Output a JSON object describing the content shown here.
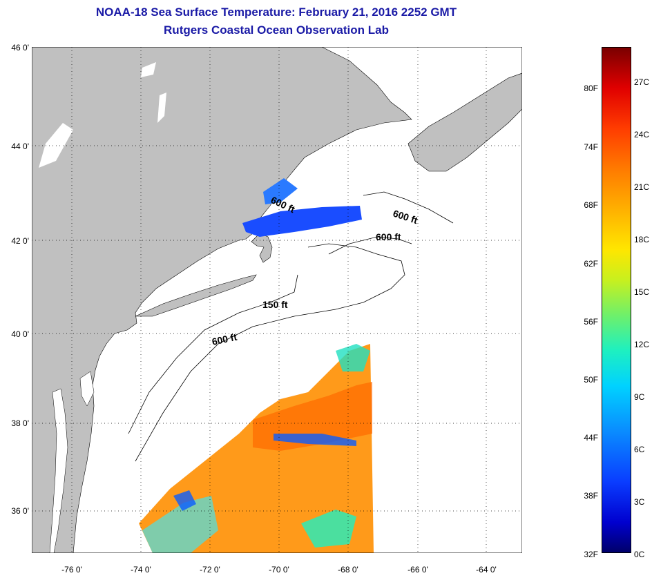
{
  "title": "NOAA-18 Sea Surface Temperature:  February 21, 2016 2252 GMT",
  "subtitle": "Rutgers Coastal Ocean Observation Lab",
  "map": {
    "lat_labels": [
      "46 0'",
      "44 0'",
      "42 0'",
      "40 0'",
      "38 0'",
      "36 0'"
    ],
    "lon_labels": [
      "-76 0'",
      "-74 0'",
      "-72 0'",
      "-70 0'",
      "-68 0'",
      "-66 0'",
      "-64 0'"
    ],
    "lat_range": [
      35,
      46
    ],
    "lon_range": [
      -77,
      -63
    ],
    "contour_labels": [
      "600 ft",
      "600 ft",
      "600 ft",
      "150 ft",
      "600 ft"
    ],
    "land_color": "#c0c0c0",
    "ocean_color": "#ffffff",
    "grid": "dotted"
  },
  "colorbar": {
    "fahrenheit_labels": [
      "80F",
      "74F",
      "68F",
      "62F",
      "56F",
      "50F",
      "44F",
      "38F",
      "32F"
    ],
    "celsius_labels": [
      "27C",
      "24C",
      "21C",
      "18C",
      "15C",
      "12C",
      "9C",
      "6C",
      "3C",
      "0C"
    ],
    "range_c": [
      0,
      29
    ],
    "colors": [
      "#00006a",
      "#0000cf",
      "#0a3dff",
      "#0a8cff",
      "#00d2ff",
      "#6ff06a",
      "#ffe600",
      "#ff7a00",
      "#e00000",
      "#7a0000"
    ]
  }
}
